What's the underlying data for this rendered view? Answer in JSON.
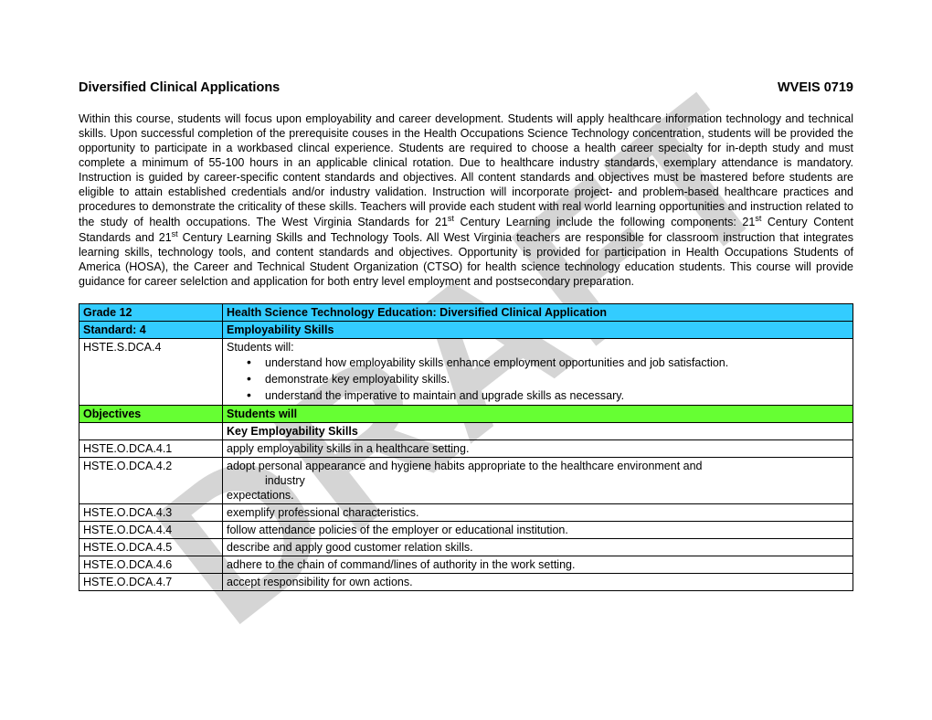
{
  "watermark_text": "DRAFT",
  "title_left": "Diversified Clinical Applications",
  "title_right": "WVEIS 0719",
  "paragraph_parts": {
    "p1": "Within this course, students will focus upon employability and career development.  Students will apply healthcare information technology and technical skills.  Upon successful completion of the prerequisite couses in the Health Occupations Science Technology concentration, students will be provided the opportunity to participate in a workbased clincal experience. Students are required to choose a health career specialty for in-depth study and must complete a minimum of 55-100 hours in an applicable clinical rotation.  Due to healthcare industry standards, exemplary attendance is mandatory.  Instruction is guided by career-specific content standards and objectives.  All content standards and objectives must be mastered before students are eligible to attain established credentials and/or industry validation. Instruction will incorporate project- and problem-based healthcare practices and procedures to demonstrate the criticality of these skills.  Teachers will provide each student with real world learning opportunities and instruction related to the study of health occupations.  The West Virginia Standards for 21",
    "p2": " Century Learning include the following components:  21",
    "p3": " Century Content Standards and 21",
    "p4": " Century Learning Skills and Technology Tools.  All West Virginia teachers are responsible for classroom instruction that integrates learning skills, technology tools, and content standards and objectives.  Opportunity is provided for participation in Health Occupations Students of America (HOSA), the Career and Technical Student Organization (CTSO) for health science technology education students. This course will provide guidance for career selelction and application for both entry level employment and  postsecondary preparation.",
    "sup": "st"
  },
  "colors": {
    "blue": "#33ccff",
    "green": "#66ff33"
  },
  "table": {
    "r1": {
      "c1": "Grade 12",
      "c2": "Health Science Technology Education:  Diversified Clinical Application"
    },
    "r2": {
      "c1": "Standard: 4",
      "c2": "Employability Skills"
    },
    "r3": {
      "c1": "HSTE.S.DCA.4",
      "lead": "Students will:",
      "bullets": [
        "understand how employability skills enhance employment opportunities and job satisfaction.",
        "demonstrate key employability skills.",
        "understand the imperative to maintain and upgrade skills as necessary."
      ]
    },
    "r4": {
      "c1": "Objectives",
      "c2": "Students will"
    },
    "r5": {
      "c1": "",
      "c2": "Key Employability Skills"
    },
    "r6": {
      "c1": "HSTE.O.DCA.4.1",
      "c2": "apply employability skills in a healthcare setting."
    },
    "r7": {
      "c1": "HSTE.O.DCA.4.2",
      "c2a": "adopt personal appearance and hygiene habits appropriate to the healthcare environment and",
      "c2b": "industry",
      "c2c": "expectations."
    },
    "r8": {
      "c1": "HSTE.O.DCA.4.3",
      "c2": "exemplify professional characteristics."
    },
    "r9": {
      "c1": "HSTE.O.DCA.4.4",
      "c2": "follow attendance policies of the employer or educational institution."
    },
    "r10": {
      "c1": "HSTE.O.DCA.4.5",
      "c2": "describe and apply good customer relation skills."
    },
    "r11": {
      "c1": "HSTE.O.DCA.4.6",
      "c2": "adhere to the chain of command/lines of authority in the work setting."
    },
    "r12": {
      "c1": "HSTE.O.DCA.4.7",
      "c2": "accept responsibility for own actions."
    }
  }
}
